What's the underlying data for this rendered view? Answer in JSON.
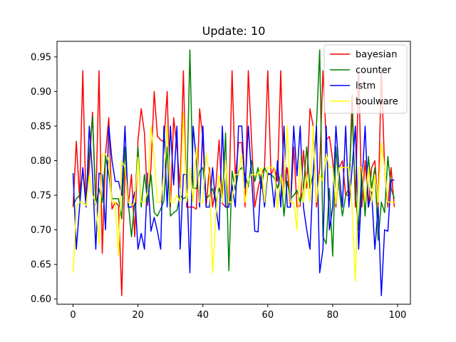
{
  "chart_data": {
    "type": "line",
    "title": "Update: 10",
    "xlabel": "",
    "ylabel": "",
    "xlim": [
      -4.95,
      103.95
    ],
    "ylim": [
      0.5925,
      0.9725
    ],
    "x_ticks": [
      0,
      20,
      40,
      60,
      80,
      100
    ],
    "y_ticks": [
      0.6,
      0.65,
      0.7,
      0.75,
      0.8,
      0.85,
      0.9,
      0.95
    ],
    "x_tick_labels": [
      "0",
      "20",
      "40",
      "60",
      "80",
      "100"
    ],
    "y_tick_labels": [
      "0.60",
      "0.65",
      "0.70",
      "0.75",
      "0.80",
      "0.85",
      "0.90",
      "0.95"
    ],
    "grid": false,
    "legend_position": "top-right",
    "x": [
      0,
      1,
      2,
      3,
      4,
      5,
      6,
      7,
      8,
      9,
      10,
      11,
      12,
      13,
      14,
      15,
      16,
      17,
      18,
      19,
      20,
      21,
      22,
      23,
      24,
      25,
      26,
      27,
      28,
      29,
      30,
      31,
      32,
      33,
      34,
      35,
      36,
      37,
      38,
      39,
      40,
      41,
      42,
      43,
      44,
      45,
      46,
      47,
      48,
      49,
      50,
      51,
      52,
      53,
      54,
      55,
      56,
      57,
      58,
      59,
      60,
      61,
      62,
      63,
      64,
      65,
      66,
      67,
      68,
      69,
      70,
      71,
      72,
      73,
      74,
      75,
      76,
      77,
      78,
      79,
      80,
      81,
      82,
      83,
      84,
      85,
      86,
      87,
      88,
      89,
      90,
      91,
      92,
      93,
      94,
      95,
      96,
      97,
      98,
      99
    ],
    "series": [
      {
        "name": "bayesian",
        "color": "#ff0000",
        "values": [
          0.733,
          0.828,
          0.745,
          0.93,
          0.733,
          0.79,
          0.87,
          0.735,
          0.93,
          0.666,
          0.81,
          0.862,
          0.73,
          0.74,
          0.735,
          0.605,
          0.79,
          0.735,
          0.78,
          0.69,
          0.83,
          0.875,
          0.84,
          0.735,
          0.79,
          0.9,
          0.835,
          0.83,
          0.827,
          0.9,
          0.733,
          0.862,
          0.82,
          0.76,
          0.93,
          0.733,
          0.733,
          0.733,
          0.73,
          0.875,
          0.832,
          0.733,
          0.79,
          0.733,
          0.763,
          0.83,
          0.738,
          0.733,
          0.733,
          0.93,
          0.775,
          0.826,
          0.826,
          0.733,
          0.93,
          0.83,
          0.733,
          0.76,
          0.78,
          0.79,
          0.93,
          0.78,
          0.79,
          0.77,
          0.93,
          0.76,
          0.79,
          0.733,
          0.82,
          0.733,
          0.735,
          0.815,
          0.76,
          0.875,
          0.85,
          0.733,
          0.79,
          0.93,
          0.83,
          0.835,
          0.8,
          0.733,
          0.79,
          0.8,
          0.75,
          0.75,
          0.895,
          0.733,
          0.93,
          0.733,
          0.8,
          0.733,
          0.79,
          0.8,
          0.733,
          0.93,
          0.79,
          0.733,
          0.79,
          0.733
        ]
      },
      {
        "name": "counter",
        "color": "#008000",
        "values": [
          0.735,
          0.745,
          0.75,
          0.785,
          0.74,
          0.81,
          0.864,
          0.735,
          0.76,
          0.74,
          0.806,
          0.78,
          0.745,
          0.745,
          0.745,
          0.716,
          0.82,
          0.74,
          0.69,
          0.74,
          0.82,
          0.733,
          0.78,
          0.74,
          0.78,
          0.725,
          0.72,
          0.73,
          0.742,
          0.82,
          0.72,
          0.725,
          0.728,
          0.75,
          0.745,
          0.748,
          0.96,
          0.76,
          0.76,
          0.785,
          0.79,
          0.745,
          0.75,
          0.76,
          0.74,
          0.76,
          0.742,
          0.84,
          0.641,
          0.785,
          0.758,
          0.785,
          0.79,
          0.78,
          0.762,
          0.8,
          0.77,
          0.79,
          0.76,
          0.79,
          0.78,
          0.78,
          0.775,
          0.76,
          0.78,
          0.72,
          0.77,
          0.745,
          0.75,
          0.757,
          0.74,
          0.76,
          0.82,
          0.76,
          0.78,
          0.85,
          0.96,
          0.69,
          0.68,
          0.76,
          0.662,
          0.82,
          0.76,
          0.72,
          0.75,
          0.76,
          0.87,
          0.75,
          0.7,
          0.79,
          0.72,
          0.806,
          0.76,
          0.79,
          0.685,
          0.74,
          0.725,
          0.806,
          0.76,
          0.745
        ]
      },
      {
        "name": "lstm",
        "color": "#0000ff",
        "values": [
          0.782,
          0.672,
          0.733,
          0.79,
          0.733,
          0.85,
          0.78,
          0.672,
          0.782,
          0.78,
          0.7,
          0.85,
          0.8,
          0.77,
          0.77,
          0.75,
          0.85,
          0.733,
          0.733,
          0.755,
          0.672,
          0.695,
          0.672,
          0.782,
          0.698,
          0.718,
          0.698,
          0.672,
          0.85,
          0.733,
          0.85,
          0.765,
          0.85,
          0.672,
          0.78,
          0.78,
          0.638,
          0.85,
          0.8,
          0.733,
          0.85,
          0.733,
          0.733,
          0.79,
          0.733,
          0.7,
          0.85,
          0.733,
          0.733,
          0.765,
          0.733,
          0.85,
          0.85,
          0.76,
          0.85,
          0.778,
          0.698,
          0.697,
          0.777,
          0.733,
          0.782,
          0.78,
          0.733,
          0.8,
          0.733,
          0.85,
          0.733,
          0.733,
          0.85,
          0.778,
          0.85,
          0.733,
          0.7,
          0.672,
          0.782,
          0.85,
          0.638,
          0.672,
          0.85,
          0.7,
          0.733,
          0.85,
          0.782,
          0.733,
          0.85,
          0.733,
          0.79,
          0.85,
          0.672,
          0.765,
          0.85,
          0.733,
          0.755,
          0.672,
          0.733,
          0.605,
          0.7,
          0.698,
          0.772,
          0.772
        ]
      },
      {
        "name": "boulware",
        "color": "#ffff00",
        "values": [
          0.638,
          0.733,
          0.74,
          0.74,
          0.735,
          0.778,
          0.75,
          0.74,
          0.68,
          0.808,
          0.81,
          0.8,
          0.74,
          0.74,
          0.662,
          0.8,
          0.79,
          0.74,
          0.735,
          0.74,
          0.805,
          0.74,
          0.74,
          0.755,
          0.85,
          0.805,
          0.74,
          0.74,
          0.78,
          0.85,
          0.74,
          0.74,
          0.75,
          0.74,
          0.87,
          0.74,
          0.79,
          0.74,
          0.82,
          0.74,
          0.74,
          0.81,
          0.78,
          0.638,
          0.72,
          0.78,
          0.74,
          0.8,
          0.74,
          0.74,
          0.78,
          0.78,
          0.81,
          0.74,
          0.77,
          0.78,
          0.78,
          0.78,
          0.79,
          0.74,
          0.79,
          0.79,
          0.79,
          0.73,
          0.78,
          0.75,
          0.85,
          0.74,
          0.74,
          0.7,
          0.81,
          0.74,
          0.78,
          0.74,
          0.85,
          0.74,
          0.78,
          0.77,
          0.81,
          0.79,
          0.79,
          0.738,
          0.79,
          0.79,
          0.79,
          0.79,
          0.73,
          0.626,
          0.79,
          0.79,
          0.74,
          0.79,
          0.74,
          0.78,
          0.74,
          0.826,
          0.79,
          0.74,
          0.74,
          0.74
        ]
      }
    ]
  }
}
